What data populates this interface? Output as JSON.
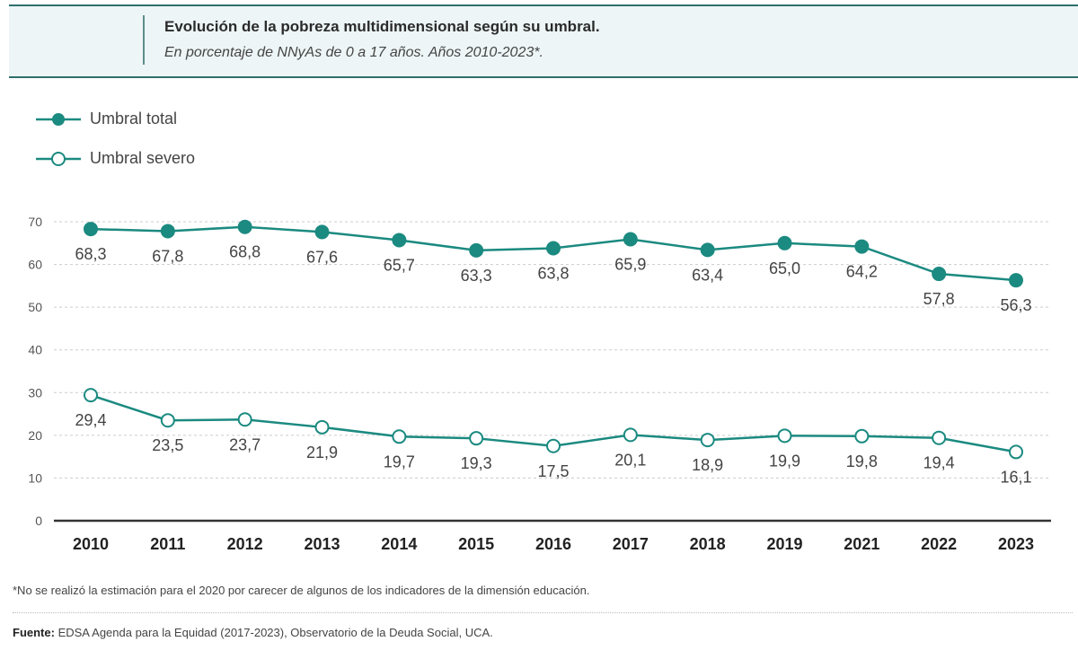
{
  "header": {
    "title": "Evolución de la pobreza multidimensional según su umbral.",
    "subtitle": "En porcentaje de NNyAs de 0 a 17 años. Años 2010-2023*."
  },
  "chart_data": {
    "type": "line",
    "title": "Evolución de la pobreza multidimensional según su umbral.",
    "subtitle": "En porcentaje de NNyAs de 0 a 17 años. Años 2010-2023*.",
    "categories": [
      "2010",
      "2011",
      "2012",
      "2013",
      "2014",
      "2015",
      "2016",
      "2017",
      "2018",
      "2019",
      "2021",
      "2022",
      "2023"
    ],
    "yticks": [
      0,
      10,
      20,
      30,
      40,
      50,
      60,
      70
    ],
    "ylim": [
      0,
      70
    ],
    "grid": true,
    "legend_position": "top-left",
    "series": [
      {
        "name": "Umbral total",
        "marker": "filled",
        "values": [
          68.3,
          67.8,
          68.8,
          67.6,
          65.7,
          63.3,
          63.8,
          65.9,
          63.4,
          65.0,
          64.2,
          57.8,
          56.3
        ],
        "labels": [
          "68,3",
          "67,8",
          "68,8",
          "67,6",
          "65,7",
          "63,3",
          "63,8",
          "65,9",
          "63,4",
          "65,0",
          "64,2",
          "57,8",
          "56,3"
        ]
      },
      {
        "name": "Umbral severo",
        "marker": "hollow",
        "values": [
          29.4,
          23.5,
          23.7,
          21.9,
          19.7,
          19.3,
          17.5,
          20.1,
          18.9,
          19.9,
          19.8,
          19.4,
          16.1
        ],
        "labels": [
          "29,4",
          "23,5",
          "23,7",
          "21,9",
          "19,7",
          "19,3",
          "17,5",
          "20,1",
          "18,9",
          "19,9",
          "19,8",
          "19,4",
          "16,1"
        ]
      }
    ],
    "color": "#1b8a80"
  },
  "footnote": "*No se realizó la estimación para el 2020 por carecer de algunos de los indicadores de la dimensión educación.",
  "source": {
    "label": "Fuente:",
    "text": " EDSA Agenda para la Equidad (2017-2023), Observatorio de la Deuda Social, UCA."
  }
}
